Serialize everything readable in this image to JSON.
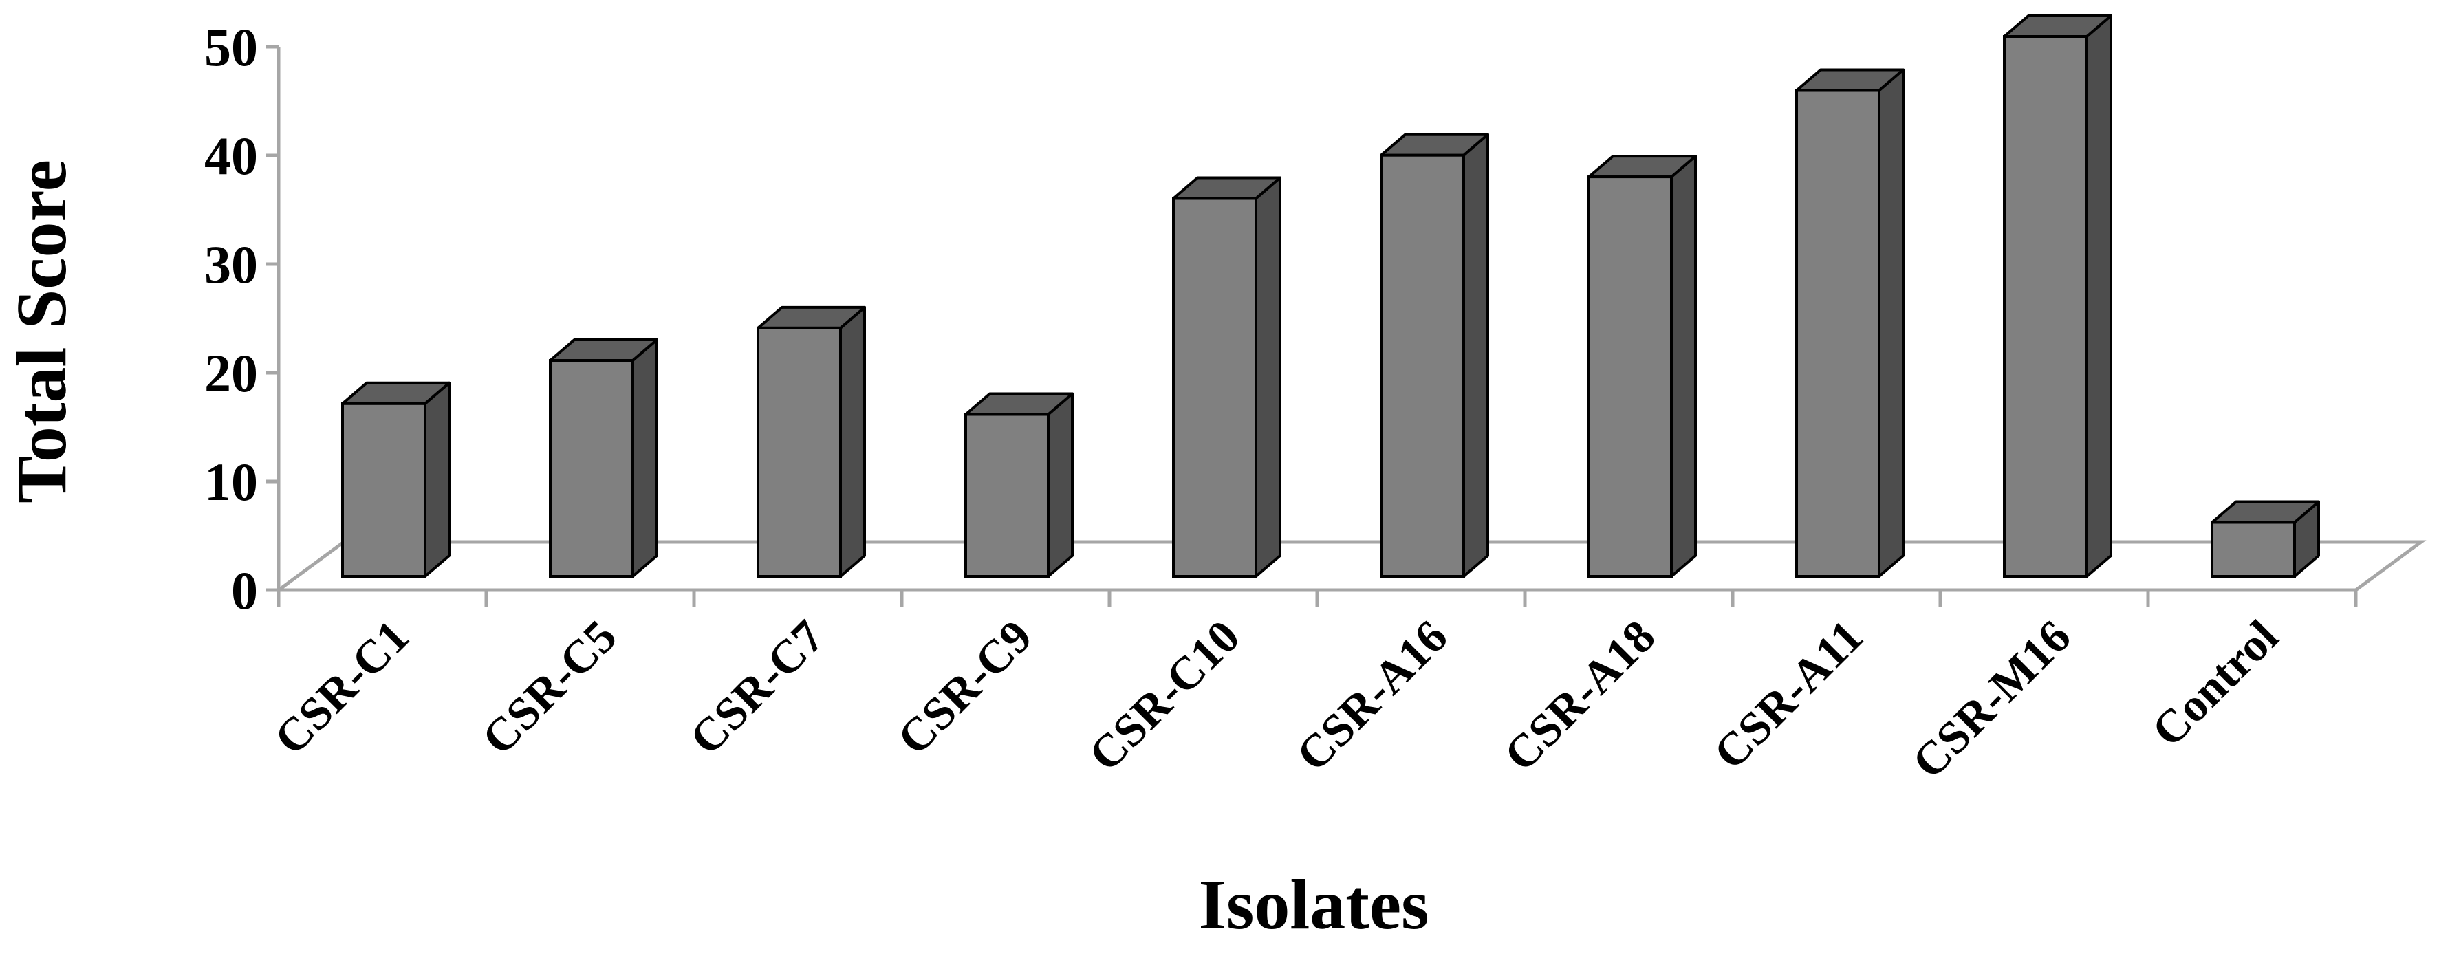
{
  "chart_data": {
    "type": "bar",
    "title": "",
    "xlabel": "Isolates",
    "ylabel": "Total Score",
    "ylim": [
      0,
      50
    ],
    "yticks": [
      0,
      10,
      20,
      30,
      40,
      50
    ],
    "grid": false,
    "legend": "none",
    "categories": [
      "CSR-C1",
      "CSR-C5",
      "CSR-C7",
      "CSR-C9",
      "CSR-C10",
      "CSR-A16",
      "CSR-A18",
      "CSR-A11",
      "CSR-M16",
      "Control"
    ],
    "values": [
      16,
      20,
      23,
      15,
      35,
      39,
      37,
      45,
      50,
      5
    ],
    "colors": {
      "front": "#808080",
      "side": "#4d4d4d",
      "top": "#5e5e5e",
      "outline": "#000000",
      "axis": "#a6a6a6"
    }
  }
}
